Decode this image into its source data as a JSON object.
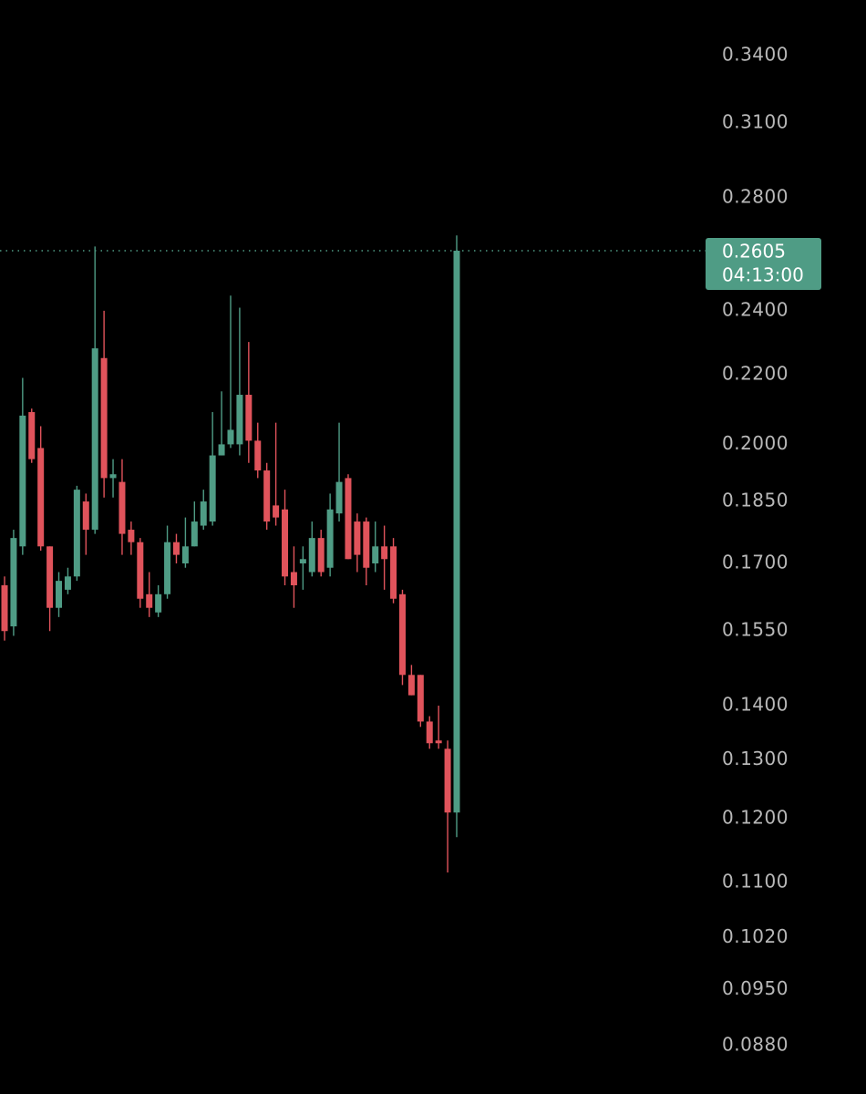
{
  "chart_data": {
    "type": "candlestick",
    "log_scale": true,
    "ylim": [
      0.0824,
      0.3668
    ],
    "yticks": [
      {
        "value": 0.34,
        "label": "0.3400"
      },
      {
        "value": 0.31,
        "label": "0.3100"
      },
      {
        "value": 0.28,
        "label": "0.2800"
      },
      {
        "value": 0.24,
        "label": "0.2400"
      },
      {
        "value": 0.22,
        "label": "0.2200"
      },
      {
        "value": 0.2,
        "label": "0.2000"
      },
      {
        "value": 0.185,
        "label": "0.1850"
      },
      {
        "value": 0.17,
        "label": "0.1700"
      },
      {
        "value": 0.155,
        "label": "0.1550"
      },
      {
        "value": 0.14,
        "label": "0.1400"
      },
      {
        "value": 0.13,
        "label": "0.1300"
      },
      {
        "value": 0.12,
        "label": "0.1200"
      },
      {
        "value": 0.11,
        "label": "0.1100"
      },
      {
        "value": 0.102,
        "label": "0.1020"
      },
      {
        "value": 0.095,
        "label": "0.0950"
      },
      {
        "value": 0.088,
        "label": "0.0880"
      }
    ],
    "up_color": "#4f9c85",
    "down_color": "#e0535b",
    "last_price": 0.2605,
    "countdown": "04:13:00",
    "open": [
      0.165,
      0.156,
      0.174,
      0.209,
      0.199,
      0.174,
      0.16,
      0.164,
      0.167,
      0.185,
      0.178,
      0.225,
      0.191,
      0.19,
      0.178,
      0.175,
      0.163,
      0.159,
      0.163,
      0.175,
      0.17,
      0.174,
      0.179,
      0.18,
      0.197,
      0.2,
      0.2,
      0.214,
      0.201,
      0.193,
      0.184,
      0.183,
      0.168,
      0.17,
      0.168,
      0.176,
      0.169,
      0.182,
      0.191,
      0.18,
      0.18,
      0.17,
      0.174,
      0.174,
      0.163,
      0.146,
      0.146,
      0.137,
      0.1335,
      0.132,
      0.121
    ],
    "high": [
      0.167,
      0.178,
      0.219,
      0.21,
      0.205,
      0.174,
      0.168,
      0.169,
      0.189,
      0.187,
      0.262,
      0.24,
      0.196,
      0.196,
      0.18,
      0.176,
      0.168,
      0.165,
      0.179,
      0.177,
      0.181,
      0.185,
      0.188,
      0.209,
      0.215,
      0.245,
      0.241,
      0.23,
      0.206,
      0.195,
      0.206,
      0.188,
      0.174,
      0.174,
      0.18,
      0.178,
      0.187,
      0.206,
      0.192,
      0.182,
      0.181,
      0.18,
      0.179,
      0.176,
      0.164,
      0.148,
      0.146,
      0.138,
      0.14,
      0.1335,
      0.266
    ],
    "low": [
      0.153,
      0.154,
      0.172,
      0.195,
      0.173,
      0.155,
      0.158,
      0.163,
      0.166,
      0.172,
      0.177,
      0.186,
      0.186,
      0.172,
      0.172,
      0.16,
      0.158,
      0.158,
      0.162,
      0.17,
      0.169,
      0.174,
      0.178,
      0.179,
      0.197,
      0.199,
      0.197,
      0.195,
      0.191,
      0.178,
      0.179,
      0.165,
      0.16,
      0.164,
      0.167,
      0.167,
      0.167,
      0.18,
      0.171,
      0.168,
      0.165,
      0.168,
      0.164,
      0.161,
      0.144,
      0.142,
      0.136,
      0.132,
      0.132,
      0.1115,
      0.117
    ],
    "close": [
      0.155,
      0.176,
      0.208,
      0.196,
      0.174,
      0.16,
      0.166,
      0.167,
      0.188,
      0.178,
      0.228,
      0.191,
      0.192,
      0.177,
      0.175,
      0.162,
      0.16,
      0.163,
      0.175,
      0.172,
      0.174,
      0.18,
      0.185,
      0.197,
      0.2,
      0.204,
      0.214,
      0.201,
      0.193,
      0.18,
      0.181,
      0.167,
      0.165,
      0.171,
      0.176,
      0.168,
      0.183,
      0.19,
      0.171,
      0.172,
      0.169,
      0.174,
      0.171,
      0.162,
      0.146,
      0.142,
      0.137,
      0.133,
      0.133,
      0.121,
      0.2605
    ]
  }
}
